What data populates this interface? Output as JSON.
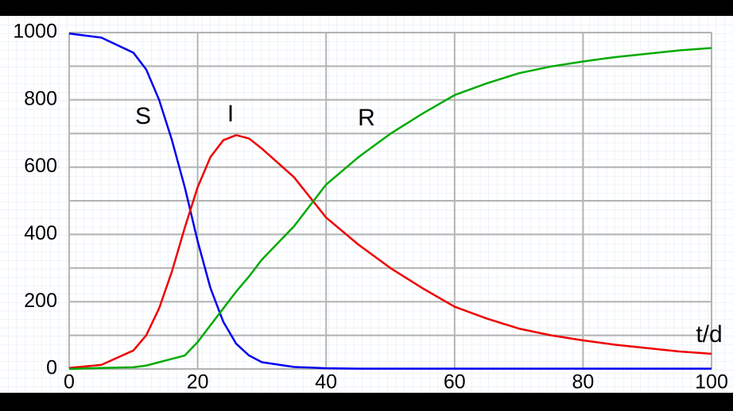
{
  "chart_data": {
    "type": "line",
    "x": [
      0,
      5,
      10,
      12,
      14,
      16,
      18,
      20,
      22,
      24,
      26,
      28,
      30,
      35,
      40,
      45,
      50,
      55,
      60,
      65,
      70,
      75,
      80,
      85,
      90,
      95,
      100
    ],
    "series": [
      {
        "name": "S",
        "color": "#0000ee",
        "values": [
          997,
          985,
          940,
          890,
          800,
          680,
          540,
          380,
          240,
          140,
          75,
          40,
          20,
          6,
          2,
          1,
          1,
          1,
          1,
          1,
          1,
          1,
          1,
          1,
          1,
          1,
          1
        ]
      },
      {
        "name": "I",
        "color": "#ee0000",
        "values": [
          3,
          12,
          55,
          100,
          180,
          290,
          420,
          540,
          630,
          680,
          695,
          685,
          655,
          570,
          450,
          370,
          300,
          240,
          185,
          150,
          120,
          100,
          85,
          72,
          62,
          52,
          45
        ]
      },
      {
        "name": "R",
        "color": "#00aa00",
        "values": [
          0,
          3,
          5,
          10,
          20,
          30,
          40,
          80,
          130,
          180,
          230,
          275,
          325,
          424,
          548,
          629,
          699,
          759,
          814,
          849,
          879,
          899,
          914,
          927,
          937,
          947,
          954
        ]
      }
    ],
    "annotations": [
      "S",
      "I",
      "R",
      "t/d"
    ],
    "xlim": [
      0,
      100
    ],
    "xticks": [
      0,
      20,
      40,
      60,
      80,
      100
    ],
    "ylim": [
      0,
      1000
    ],
    "yticks": [
      0,
      200,
      400,
      600,
      800,
      1000
    ],
    "y_minor_ticks": [
      100,
      300,
      500,
      700,
      900
    ],
    "grid": true
  }
}
